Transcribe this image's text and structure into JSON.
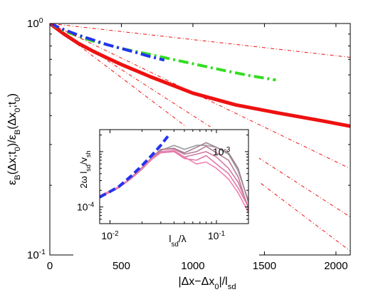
{
  "chart_data": [
    {
      "type": "line",
      "panel": "main",
      "yscale": "log",
      "xlim": [
        0,
        2100
      ],
      "ylim": [
        0.1,
        1
      ],
      "xticks": [
        0,
        500,
        1000,
        1500,
        2000
      ],
      "xtick_labels": [
        "0",
        "500",
        "1000",
        "1500",
        "2000"
      ],
      "yticks": [
        0.1,
        1
      ],
      "ytick_labels": [
        {
          "base": "10",
          "exp": "-1"
        },
        {
          "base": "10",
          "exp": "0"
        }
      ],
      "xlabel": {
        "parts": [
          {
            "t": "|Δx−Δx"
          },
          {
            "t": "0",
            "sub": true
          },
          {
            "t": "|/l"
          },
          {
            "t": "sd",
            "sub": true
          }
        ]
      },
      "ylabel": {
        "parts": [
          {
            "t": "ε"
          },
          {
            "t": "B",
            "sub": true
          },
          {
            "t": "(Δx;t"
          },
          {
            "t": "0",
            "sub": true
          },
          {
            "t": ")/ε"
          },
          {
            "t": "B",
            "sub": true
          },
          {
            "t": "(Δx"
          },
          {
            "t": "0",
            "sub": true
          },
          {
            "t": ";t"
          },
          {
            "t": "0",
            "sub": true
          },
          {
            "t": ")"
          }
        ]
      },
      "grid": false,
      "series": [
        {
          "style": "solid",
          "color": "#ee1111",
          "width": 5,
          "x": [
            0,
            100,
            200,
            300,
            400,
            500,
            700,
            1000,
            1300,
            1600,
            1900,
            2100
          ],
          "y": [
            1.0,
            0.9,
            0.82,
            0.76,
            0.71,
            0.665,
            0.59,
            0.5,
            0.445,
            0.41,
            0.38,
            0.36
          ]
        },
        {
          "style": "dash-dot",
          "color": "#33dd22",
          "width": 4,
          "x": [
            0,
            100,
            200,
            300,
            400,
            500,
            700,
            1000,
            1200,
            1400,
            1580
          ],
          "y": [
            1.0,
            0.93,
            0.88,
            0.84,
            0.81,
            0.78,
            0.735,
            0.67,
            0.63,
            0.595,
            0.57
          ]
        },
        {
          "style": "dash-dot",
          "color": "#2233ee",
          "width": 4,
          "x": [
            0,
            100,
            200,
            300,
            400,
            500,
            600,
            700,
            800
          ],
          "y": [
            1.0,
            0.94,
            0.89,
            0.85,
            0.81,
            0.78,
            0.75,
            0.72,
            0.695
          ]
        },
        {
          "style": "dash-dot-fine",
          "color": "#ee1111",
          "width": 1,
          "x": [
            0,
            2100
          ],
          "y": [
            1.0,
            0.714
          ]
        },
        {
          "style": "dash-dot-fine",
          "color": "#ee1111",
          "width": 1,
          "x": [
            0,
            2100
          ],
          "y": [
            1.0,
            0.236
          ]
        },
        {
          "style": "dash-dot-fine",
          "color": "#ee1111",
          "width": 1,
          "x": [
            0,
            2100
          ],
          "y": [
            1.0,
            0.146
          ]
        },
        {
          "style": "dash-dot-fine",
          "color": "#ee1111",
          "width": 1,
          "x": [
            0,
            2100
          ],
          "y": [
            1.0,
            0.104
          ]
        }
      ]
    },
    {
      "type": "line",
      "panel": "inset",
      "xscale": "log",
      "yscale": "log",
      "xlim": [
        0.008,
        0.2
      ],
      "ylim": [
        5e-05,
        0.0025
      ],
      "xticks": [
        0.01,
        0.1
      ],
      "xtick_labels": [
        {
          "base": "10",
          "exp": "-2"
        },
        {
          "base": "10",
          "exp": "-1"
        }
      ],
      "yticks": [
        0.0001,
        0.001
      ],
      "ytick_labels": [
        {
          "base": "10",
          "exp": "-4"
        },
        {
          "base": "10",
          "exp": "-3"
        }
      ],
      "xlabel": {
        "parts": [
          {
            "t": "l"
          },
          {
            "t": "sd",
            "sub": true
          },
          {
            "t": "/λ"
          }
        ]
      },
      "ylabel": {
        "parts": [
          {
            "t": "2ω l"
          },
          {
            "t": "sd",
            "sub": true
          },
          {
            "t": "/v"
          },
          {
            "t": "sh",
            "sub": true
          }
        ]
      },
      "grid": false,
      "series": [
        {
          "style": "solid",
          "color": "#999999",
          "width": 1.6,
          "x": [
            0.008,
            0.012,
            0.016,
            0.02,
            0.025,
            0.03,
            0.04,
            0.05,
            0.065,
            0.08,
            0.1,
            0.13,
            0.16,
            0.2
          ],
          "y": [
            0.00015,
            0.00022,
            0.00033,
            0.00048,
            0.00075,
            0.00105,
            0.0013,
            0.0011,
            0.0013,
            0.0013,
            0.0012,
            0.0009,
            0.00045,
            0.00013
          ]
        },
        {
          "style": "solid",
          "color": "#a08090",
          "width": 1.6,
          "x": [
            0.008,
            0.012,
            0.016,
            0.02,
            0.025,
            0.03,
            0.04,
            0.05,
            0.065,
            0.08,
            0.1,
            0.13,
            0.16,
            0.2
          ],
          "y": [
            0.00016,
            0.00023,
            0.00034,
            0.0005,
            0.00078,
            0.00108,
            0.00115,
            0.00095,
            0.0012,
            0.00145,
            0.0012,
            0.00095,
            0.0005,
            0.00012
          ]
        },
        {
          "style": "solid",
          "color": "#b87a95",
          "width": 1.6,
          "x": [
            0.008,
            0.012,
            0.016,
            0.02,
            0.025,
            0.03,
            0.04,
            0.05,
            0.065,
            0.08,
            0.1,
            0.13,
            0.16,
            0.2
          ],
          "y": [
            0.00015,
            0.00022,
            0.00035,
            0.00052,
            0.0008,
            0.0011,
            0.00112,
            0.0009,
            0.001,
            0.00125,
            0.00095,
            0.0007,
            0.00035,
            9e-05
          ]
        },
        {
          "style": "solid",
          "color": "#d07aa0",
          "width": 1.6,
          "x": [
            0.008,
            0.012,
            0.016,
            0.02,
            0.025,
            0.03,
            0.04,
            0.05,
            0.065,
            0.08,
            0.1,
            0.13,
            0.16,
            0.2
          ],
          "y": [
            0.00015,
            0.00022,
            0.00034,
            0.0005,
            0.00077,
            0.001,
            0.00105,
            0.0008,
            0.0009,
            0.001,
            0.0008,
            0.0005,
            0.00028,
            0.0001
          ]
        },
        {
          "style": "solid",
          "color": "#e07aa8",
          "width": 1.6,
          "x": [
            0.008,
            0.012,
            0.016,
            0.02,
            0.025,
            0.03,
            0.04,
            0.05,
            0.065,
            0.08,
            0.1,
            0.13,
            0.16,
            0.2
          ],
          "y": [
            0.00015,
            0.00022,
            0.00033,
            0.00049,
            0.00074,
            0.00095,
            0.001,
            0.00075,
            0.0007,
            0.00085,
            0.0006,
            0.0004,
            0.00022,
            0.0001
          ]
        },
        {
          "style": "solid",
          "color": "#f080b0",
          "width": 1.6,
          "x": [
            0.008,
            0.012,
            0.016,
            0.02,
            0.025,
            0.03,
            0.04,
            0.05,
            0.065,
            0.08,
            0.1,
            0.13,
            0.16,
            0.2
          ],
          "y": [
            0.00016,
            0.00023,
            0.00034,
            0.0005,
            0.00075,
            0.00098,
            0.00105,
            0.0008,
            0.0006,
            0.00065,
            0.0005,
            0.00032,
            0.00018,
            8e-05
          ]
        },
        {
          "style": "dash",
          "color": "#2233ee",
          "width": 4,
          "x": [
            0.008,
            0.012,
            0.016,
            0.02,
            0.025,
            0.03,
            0.035
          ],
          "y": [
            0.00015,
            0.00023,
            0.00037,
            0.00056,
            0.00088,
            0.0013,
            0.0019
          ]
        }
      ]
    }
  ]
}
